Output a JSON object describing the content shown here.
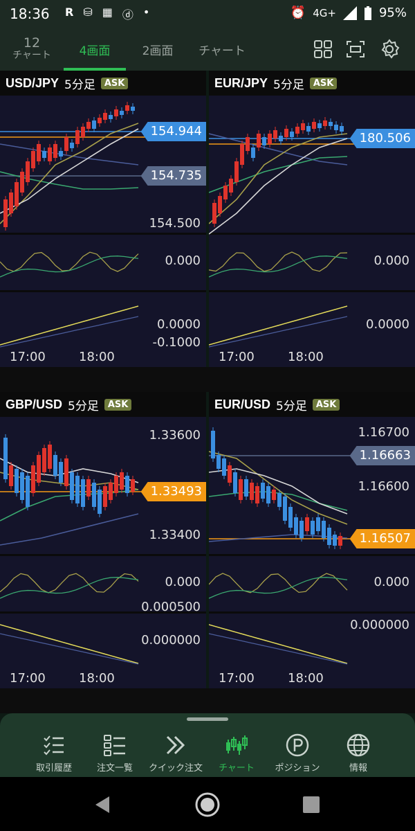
{
  "status_bar": {
    "time": "18:36",
    "network": "4G+",
    "battery": "95%",
    "left_icons": [
      "R",
      "bag-icon",
      "truck-icon",
      "d-icon",
      "dot-icon"
    ]
  },
  "top_nav": {
    "tabs": [
      {
        "count": "12",
        "label": "チャート",
        "active": false
      },
      {
        "label": "4画面",
        "active": true
      },
      {
        "label": "2画面",
        "active": false
      },
      {
        "label": "チャート",
        "active": false
      }
    ],
    "tools": [
      "grid-layout-icon",
      "frame-icon",
      "settings-icon"
    ]
  },
  "panels": [
    {
      "pair": "USD/JPY",
      "timeframe": "5分足",
      "ask": "ASK",
      "price_labels": [
        "154.500"
      ],
      "tags": [
        {
          "value": "154.944",
          "color": "blue"
        },
        {
          "value": "154.735",
          "color": "gray"
        }
      ],
      "osc1_label": "0.000",
      "osc2_labels": [
        "0.0000",
        "-0.1000"
      ],
      "times": [
        "17:00",
        "18:00"
      ]
    },
    {
      "pair": "EUR/JPY",
      "timeframe": "5分足",
      "ask": "ASK",
      "price_labels": [],
      "tags": [
        {
          "value": "180.506",
          "color": "blue"
        }
      ],
      "osc1_label": "0.000",
      "osc2_labels": [
        "0.0000"
      ],
      "times": [
        "17:00",
        "18:00"
      ]
    },
    {
      "pair": "GBP/USD",
      "timeframe": "5分足",
      "ask": "ASK",
      "price_labels": [
        "1.33600",
        "1.33400"
      ],
      "tags": [
        {
          "value": "1.33493",
          "color": "orange"
        }
      ],
      "osc1_label": "0.000",
      "osc2_labels": [
        "0.000500",
        "0.000000"
      ],
      "times": [
        "17:00",
        "18:00"
      ]
    },
    {
      "pair": "EUR/USD",
      "timeframe": "5分足",
      "ask": "ASK",
      "price_labels": [
        "1.16700",
        "1.16600"
      ],
      "tags": [
        {
          "value": "1.16663",
          "color": "gray"
        },
        {
          "value": "1.16507",
          "color": "orange"
        }
      ],
      "osc1_label": "0.000",
      "osc2_labels": [
        "0.000000"
      ],
      "times": [
        "17:00",
        "18:00"
      ]
    }
  ],
  "bottom_nav": [
    {
      "label": "取引履歴",
      "icon": "checklist-icon",
      "active": false
    },
    {
      "label": "注文一覧",
      "icon": "list-icon",
      "active": false
    },
    {
      "label": "クイック注文",
      "icon": "double-chevron-icon",
      "active": false
    },
    {
      "label": "チャート",
      "icon": "candlestick-icon",
      "active": true
    },
    {
      "label": "ポジション",
      "icon": "p-circle-icon",
      "active": false
    },
    {
      "label": "情報",
      "icon": "globe-icon",
      "active": false
    }
  ],
  "colors": {
    "accent_green": "#2fbe55",
    "candle_up": "#e0342c",
    "candle_down": "#3b8fe0",
    "ma_white": "#d8d8d8",
    "ma_olive": "#a8a04a",
    "ma_green": "#3aa870",
    "ma_blue": "#4a5c9a",
    "price_line_orange": "#f39a14"
  }
}
